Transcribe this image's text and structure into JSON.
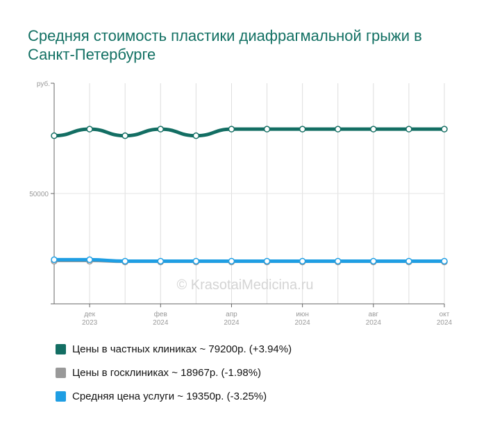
{
  "title": "Средняя стоимость пластики диафрагмальной грыжи в Санкт-Петербурге",
  "watermark": "© KrasotaiMedicina.ru",
  "colors": {
    "private": "#136e63",
    "public": "#999999",
    "average": "#1f9ee3"
  },
  "chart_data": {
    "type": "line",
    "title": "Средняя стоимость пластики диафрагмальной грыжи в Санкт-Петербурге",
    "ylabel": "руб.",
    "ylim": [
      0,
      100000
    ],
    "yticks": [
      {
        "value": 50000,
        "label": "50000"
      }
    ],
    "x": [
      "2023-11",
      "2023-12",
      "2024-01",
      "2024-02",
      "2024-03",
      "2024-04",
      "2024-05",
      "2024-06",
      "2024-07",
      "2024-08",
      "2024-09",
      "2024-10"
    ],
    "xticks": [
      {
        "index": 1,
        "line1": "дек",
        "line2": "2023"
      },
      {
        "index": 3,
        "line1": "фев",
        "line2": "2024"
      },
      {
        "index": 5,
        "line1": "апр",
        "line2": "2024"
      },
      {
        "index": 7,
        "line1": "июн",
        "line2": "2024"
      },
      {
        "index": 9,
        "line1": "авг",
        "line2": "2024"
      },
      {
        "index": 11,
        "line1": "окт",
        "line2": "2024"
      }
    ],
    "grid": true,
    "series": [
      {
        "key": "private",
        "name": "Цены в частных клиниках",
        "color": "#136e63",
        "values": [
          76200,
          79200,
          76200,
          79200,
          76200,
          79200,
          79200,
          79200,
          79200,
          79200,
          79200,
          79200
        ]
      },
      {
        "key": "public",
        "name": "Цены в госклиниках",
        "color": "#999999",
        "values": [
          19350,
          19350,
          18967,
          18967,
          18967,
          18967,
          18967,
          18967,
          18967,
          18967,
          18967,
          18967
        ]
      },
      {
        "key": "average",
        "name": "Средняя цена услуги",
        "color": "#1f9ee3",
        "values": [
          20000,
          20000,
          19350,
          19350,
          19350,
          19350,
          19350,
          19350,
          19350,
          19350,
          19350,
          19350
        ]
      }
    ]
  },
  "legend": [
    {
      "label": "Цены в частных клиниках ~ 79200р. (+3.94%)",
      "color": "#136e63"
    },
    {
      "label": "Цены в госклиниках ~ 18967р. (-1.98%)",
      "color": "#999999"
    },
    {
      "label": "Средняя цена услуги ~ 19350р. (-3.25%)",
      "color": "#1f9ee3"
    }
  ]
}
